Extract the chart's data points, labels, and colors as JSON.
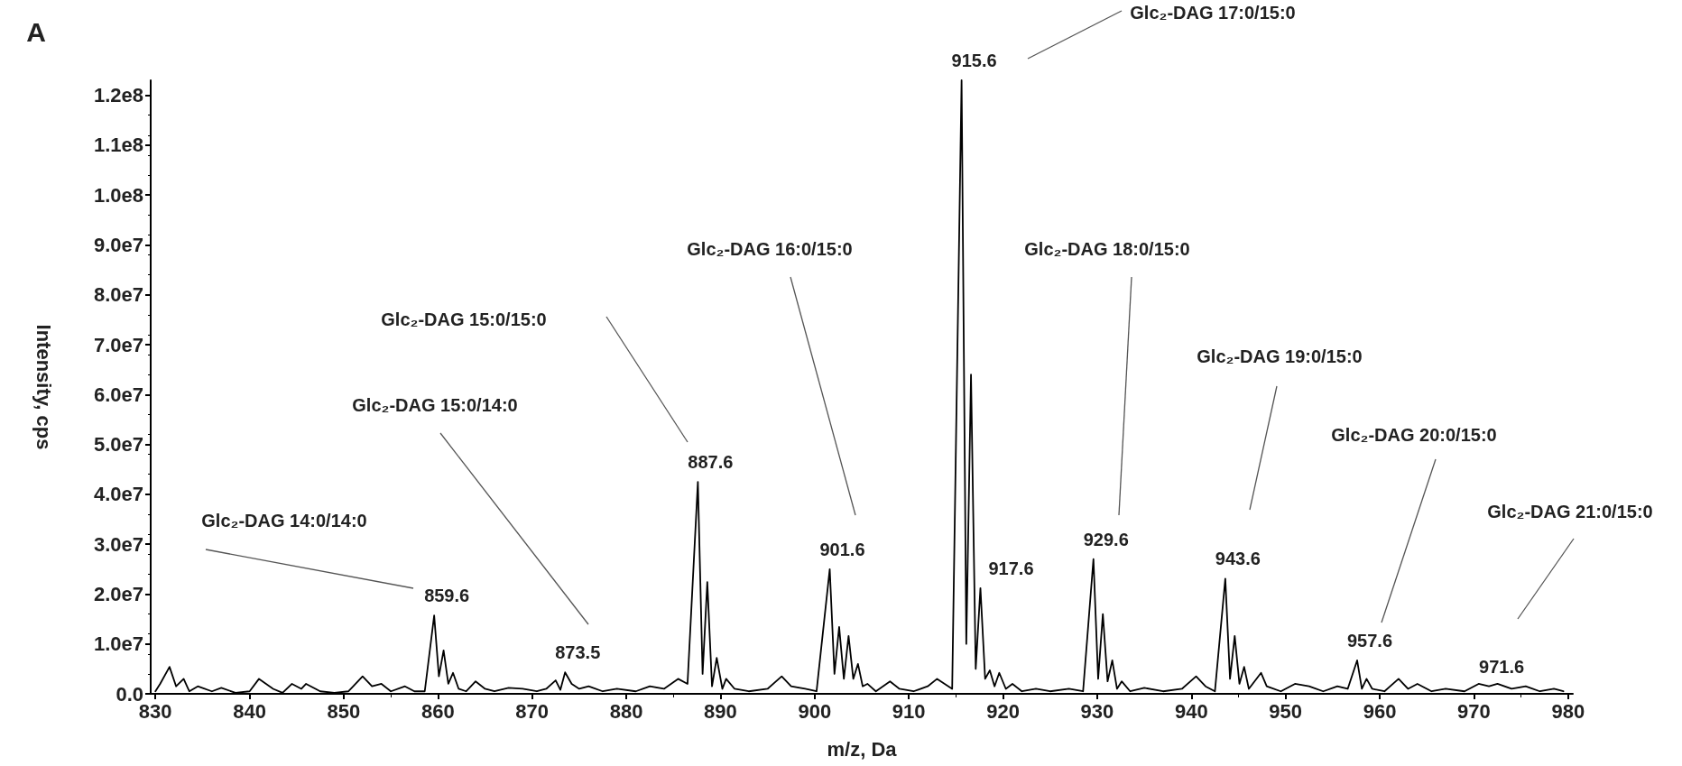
{
  "chart_data": {
    "type": "line",
    "xlabel": "m/z, Da",
    "ylabel": "Intensity, cps",
    "annotations": [
      "A",
      "Glc₂-DAG 14:0/14:0",
      "Glc₂-DAG 15:0/14:0",
      "Glc₂-DAG 15:0/15:0",
      "Glc₂-DAG 16:0/15:0",
      "Glc₂-DAG 17:0/15:0",
      "Glc₂-DAG 18:0/15:0",
      "Glc₂-DAG 19:0/15:0",
      "Glc₂-DAG 20:0/15:0",
      "Glc₂-DAG 21:0/15:0",
      {
        "text": "859.6",
        "x": 859.6,
        "y": 15700000.0
      },
      {
        "text": "873.5",
        "x": 873.5,
        "y": 4300000.0
      },
      {
        "text": "887.6",
        "x": 887.6,
        "y": 42500000.0
      },
      {
        "text": "901.6",
        "x": 901.6,
        "y": 25000000.0
      },
      {
        "text": "915.6",
        "x": 915.6,
        "y": 123000000.0
      },
      {
        "text": "917.6",
        "x": 917.6,
        "y": 21200000.0
      },
      {
        "text": "929.6",
        "x": 929.6,
        "y": 27000000.0
      },
      {
        "text": "943.6",
        "x": 943.6,
        "y": 23100000.0
      },
      {
        "text": "957.6",
        "x": 957.6,
        "y": 6700000.0
      },
      {
        "text": "971.6",
        "x": 971.6,
        "y": 1500000.0
      }
    ],
    "series": [
      {
        "color": "#000000",
        "x": [
          830,
          830.5,
          831.5,
          832.2,
          833,
          833.6,
          834.5,
          836,
          837,
          838.5,
          840,
          841,
          842.5,
          843.5,
          844.5,
          845.5,
          846,
          847.5,
          849,
          850.5,
          852,
          853,
          854,
          855,
          856.5,
          857.5,
          858.6,
          859.6,
          860.1,
          860.6,
          861.1,
          861.6,
          862.2,
          863,
          864,
          865,
          866,
          867.5,
          869,
          870.5,
          871.5,
          872.5,
          873,
          873.5,
          874.2,
          875,
          876,
          877.5,
          879,
          881,
          882.5,
          884,
          885.5,
          886.5,
          887.6,
          888.1,
          888.6,
          889.1,
          889.6,
          890.2,
          890.6,
          891.5,
          893,
          895,
          896.5,
          897.5,
          899,
          900.2,
          901.6,
          902.1,
          902.6,
          903.1,
          903.6,
          904.1,
          904.6,
          905.1,
          905.6,
          906.5,
          908,
          909,
          910.5,
          912,
          913,
          914.6,
          915.6,
          916.1,
          916.6,
          917.1,
          917.6,
          918.1,
          918.6,
          919.1,
          919.6,
          920.3,
          921,
          922,
          923.5,
          925,
          927,
          928.5,
          929.6,
          930.1,
          930.6,
          931.1,
          931.6,
          932.1,
          932.6,
          933.5,
          935,
          937,
          939,
          940.5,
          941.5,
          942.5,
          943.6,
          944.1,
          944.6,
          945.1,
          945.6,
          946.1,
          947.4,
          948,
          949.5,
          951,
          952.5,
          954,
          955.5,
          956.6,
          957.6,
          958.1,
          958.6,
          959.2,
          960.5,
          962,
          963,
          964,
          965.5,
          967,
          969,
          970.5,
          971.6,
          972.5,
          974,
          975.5,
          977,
          978.5,
          979.5
        ],
        "values": [
          500000.0,
          2000000.0,
          5400000.0,
          1500000.0,
          3000000.0,
          500000.0,
          1500000.0,
          500000.0,
          1200000.0,
          200000.0,
          500000.0,
          3000000.0,
          1000000.0,
          200000.0,
          2000000.0,
          1000000.0,
          2000000.0,
          500000.0,
          200000.0,
          500000.0,
          3500000.0,
          1500000.0,
          2000000.0,
          500000.0,
          1500000.0,
          500000.0,
          500000.0,
          15700000.0,
          3500000.0,
          8700000.0,
          2000000.0,
          4200000.0,
          1000000.0,
          500000.0,
          2500000.0,
          1000000.0,
          500000.0,
          1200000.0,
          1000000.0,
          500000.0,
          1000000.0,
          2700000.0,
          800000.0,
          4300000.0,
          2000000.0,
          1000000.0,
          1500000.0,
          500000.0,
          1000000.0,
          500000.0,
          1500000.0,
          1000000.0,
          3000000.0,
          2000000.0,
          42500000.0,
          4000000.0,
          22400000.0,
          1500000.0,
          7200000.0,
          1000000.0,
          3000000.0,
          1000000.0,
          500000.0,
          1000000.0,
          3500000.0,
          1500000.0,
          1000000.0,
          500000.0,
          25000000.0,
          4000000.0,
          13400000.0,
          3000000.0,
          11600000.0,
          3000000.0,
          6000000.0,
          1500000.0,
          2000000.0,
          500000.0,
          2500000.0,
          1000000.0,
          500000.0,
          1500000.0,
          3000000.0,
          1000000.0,
          123000000.0,
          10000000.0,
          64000000.0,
          5000000.0,
          21200000.0,
          3000000.0,
          4700000.0,
          1500000.0,
          4200000.0,
          1000000.0,
          2000000.0,
          500000.0,
          1000000.0,
          500000.0,
          1000000.0,
          500000.0,
          27000000.0,
          3000000.0,
          16000000.0,
          2500000.0,
          6700000.0,
          1000000.0,
          2500000.0,
          500000.0,
          1200000.0,
          500000.0,
          1000000.0,
          3500000.0,
          1500000.0,
          500000.0,
          23100000.0,
          3000000.0,
          11600000.0,
          2000000.0,
          5400000.0,
          1000000.0,
          4200000.0,
          1500000.0,
          500000.0,
          2000000.0,
          1500000.0,
          500000.0,
          1500000.0,
          1000000.0,
          6700000.0,
          1000000.0,
          3000000.0,
          1000000.0,
          500000.0,
          3000000.0,
          1000000.0,
          2000000.0,
          500000.0,
          1000000.0,
          500000.0,
          2000000.0,
          1500000.0,
          2000000.0,
          1000000.0,
          1500000.0,
          500000.0,
          1000000.0,
          500000.0
        ]
      }
    ],
    "xlim": [
      829.5,
      980.5
    ],
    "xticks": [
      830,
      840,
      850,
      860,
      870,
      880,
      890,
      900,
      910,
      920,
      930,
      940,
      950,
      960,
      970,
      980
    ],
    "ylim": [
      0,
      123000000.0
    ],
    "yticks": [
      {
        "value": 0,
        "label": "0.0"
      },
      {
        "value": 10000000.0,
        "label": "1.0e7"
      },
      {
        "value": 20000000.0,
        "label": "2.0e7"
      },
      {
        "value": 30000000.0,
        "label": "3.0e7"
      },
      {
        "value": 40000000.0,
        "label": "4.0e7"
      },
      {
        "value": 50000000.0,
        "label": "5.0e7"
      },
      {
        "value": 60000000.0,
        "label": "6.0e7"
      },
      {
        "value": 70000000.0,
        "label": "7.0e7"
      },
      {
        "value": 80000000.0,
        "label": "8.0e7"
      },
      {
        "value": 90000000.0,
        "label": "9.0e7"
      },
      {
        "value": 100000000.0,
        "label": "1.0e8"
      },
      {
        "value": 110000000.0,
        "label": "1.1e8"
      },
      {
        "value": 120000000.0,
        "label": "1.2e8"
      }
    ],
    "grid": false,
    "marker": "none",
    "line_style": "solid"
  }
}
